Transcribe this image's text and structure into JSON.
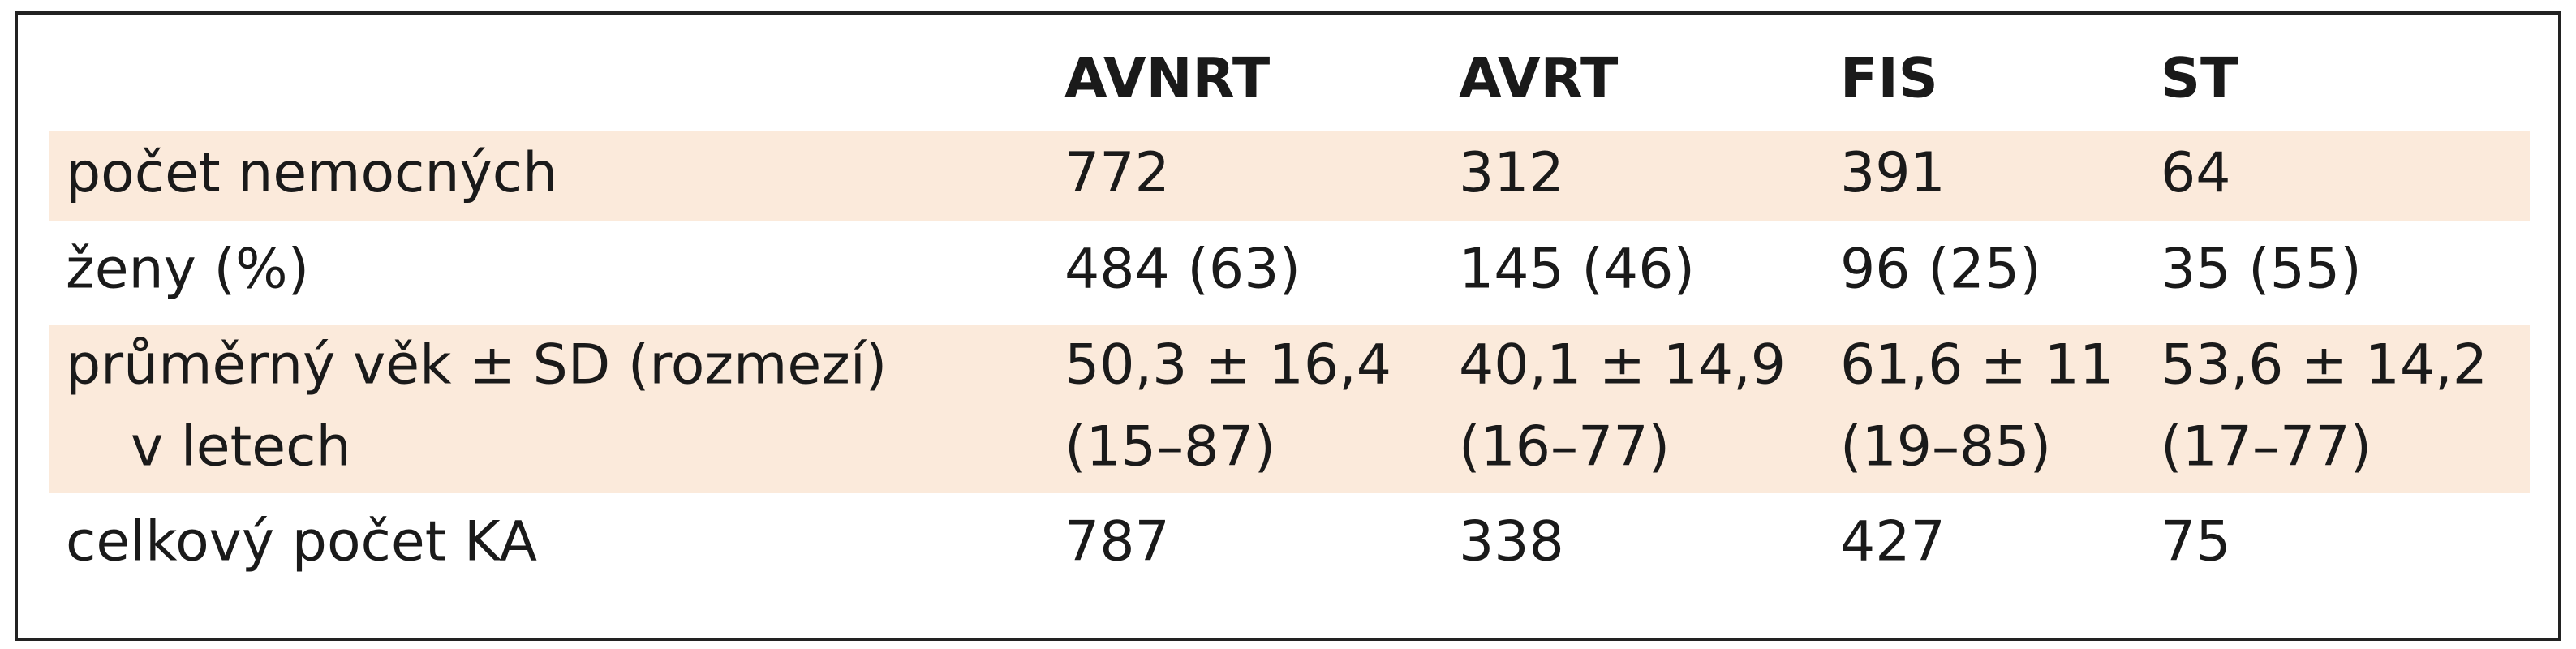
{
  "table": {
    "columns": [
      "AVNRT",
      "AVRT",
      "FIS",
      "ST"
    ],
    "rows": [
      {
        "label": [
          "počet nemocných"
        ],
        "cells": [
          [
            "772"
          ],
          [
            "312"
          ],
          [
            "391"
          ],
          [
            "64"
          ]
        ]
      },
      {
        "label": [
          "ženy (%)"
        ],
        "cells": [
          [
            "484 (63)"
          ],
          [
            "145 (46)"
          ],
          [
            "96 (25)"
          ],
          [
            "35 (55)"
          ]
        ]
      },
      {
        "label": [
          "průměrný věk ± SD (rozmezí)",
          "v letech"
        ],
        "cells": [
          [
            "50,3 ± 16,4",
            "(15–87)"
          ],
          [
            "40,1 ± 14,9",
            "(16–77)"
          ],
          [
            "61,6 ± 11",
            "(19–85)"
          ],
          [
            "53,6 ± 14,2",
            "(17–77)"
          ]
        ]
      },
      {
        "label": [
          "celkový počet KA"
        ],
        "cells": [
          [
            "787"
          ],
          [
            "338"
          ],
          [
            "427"
          ],
          [
            "75"
          ]
        ]
      }
    ]
  }
}
